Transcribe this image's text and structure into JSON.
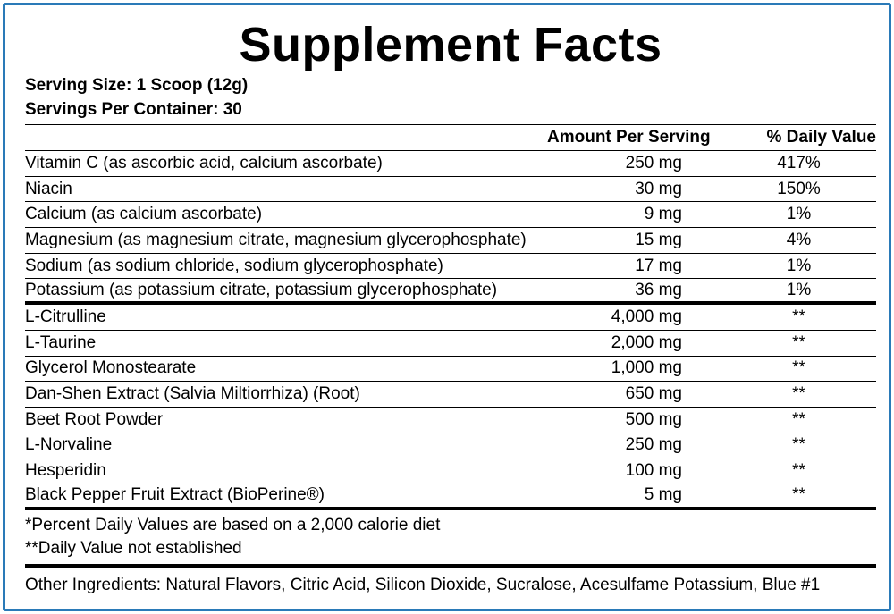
{
  "title": "Supplement Facts",
  "serving_size": "Serving Size:  1 Scoop (12g)",
  "servings_per_container": "Servings Per Container:  30",
  "header": {
    "amount": "Amount Per Serving",
    "dv": "% Daily Value"
  },
  "rows": [
    {
      "name": "Vitamin C (as ascorbic acid, calcium ascorbate)",
      "amount": "250 mg",
      "dv": "417%"
    },
    {
      "name": "Niacin",
      "amount": "30 mg",
      "dv": "150%"
    },
    {
      "name": "Calcium (as calcium ascorbate)",
      "amount": "9 mg",
      "dv": "1%"
    },
    {
      "name": "Magnesium (as magnesium citrate, magnesium glycerophosphate)",
      "amount": "15 mg",
      "dv": "4%"
    },
    {
      "name": "Sodium (as sodium chloride, sodium glycerophosphate)",
      "amount": "17 mg",
      "dv": "1%"
    },
    {
      "name": "Potassium (as potassium citrate, potassium glycerophosphate)",
      "amount": "36 mg",
      "dv": "1%"
    },
    {
      "name": "L-Citrulline",
      "amount": "4,000 mg",
      "dv": "**"
    },
    {
      "name": "L-Taurine",
      "amount": "2,000 mg",
      "dv": "**"
    },
    {
      "name": "Glycerol Monostearate",
      "amount": "1,000 mg",
      "dv": "**"
    },
    {
      "name": "Dan-Shen Extract (Salvia Miltiorrhiza) (Root)",
      "amount": "650 mg",
      "dv": "**"
    },
    {
      "name": "Beet Root Powder",
      "amount": "500 mg",
      "dv": "**"
    },
    {
      "name": "L-Norvaline",
      "amount": "250 mg",
      "dv": "**"
    },
    {
      "name": "Hesperidin",
      "amount": "100 mg",
      "dv": "**"
    },
    {
      "name": "Black Pepper Fruit Extract (BioPerine®)",
      "amount": "5 mg",
      "dv": "**"
    }
  ],
  "footnotes": [
    "*Percent Daily Values are based on a 2,000 calorie diet",
    "**Daily Value not established"
  ],
  "other_ingredients": "Other Ingredients:  Natural Flavors, Citric Acid, Silicon Dioxide, Sucralose, Acesulfame Potassium, Blue #1",
  "colors": {
    "border": "#2a7ab8"
  }
}
